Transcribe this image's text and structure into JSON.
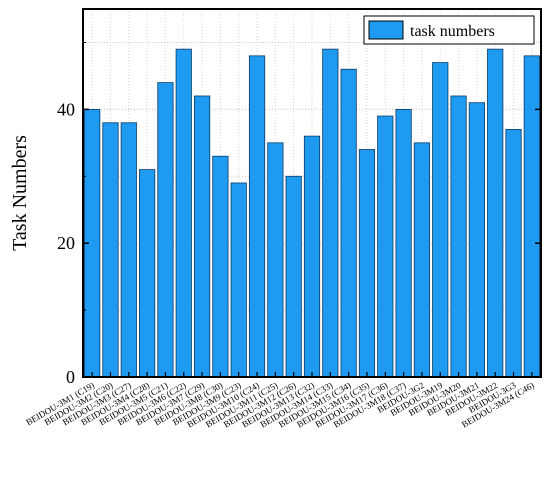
{
  "chart_data": {
    "type": "bar",
    "title": "",
    "xlabel": "",
    "ylabel": "Task  Numbers",
    "ylim": [
      0,
      55
    ],
    "yticks": [
      0,
      20,
      40
    ],
    "grid": true,
    "legend_position": "top-right",
    "bar_color": "#1E9BF0",
    "categories": [
      "BEIDOU-3M1 (C19)",
      "BEIDOU-3M2 (C20)",
      "BEIDOU-3M3 (C27)",
      "BEIDOU-3M4 (C28)",
      "BEIDOU-3M5 (C21)",
      "BEIDOU-3M6 (C22)",
      "BEIDOU-3M7 (C29)",
      "BEIDOU-3M8 (C30)",
      "BEIDOU-3M9 (C23)",
      "BEIDOU-3M10 (C24)",
      "BEIDOU-3M11 (C25)",
      "BEIDOU-3M12 (C26)",
      "BEIDOU-3M13 (C32)",
      "BEIDOU-3M14 (C33)",
      "BEIDOU-3M15 (C34)",
      "BEIDOU-3M16 (C35)",
      "BEIDOU-3M17 (C36)",
      "BEIDOU-3M18 (C37)",
      "BEIDOU-3G2",
      "BEIDOU-3M19",
      "BEIDOU-3M20",
      "BEIDOU-3M21",
      "BEIDOU-3M22",
      "BEIDOU-3G3",
      "BEIDOU-3M24 (C46)"
    ],
    "series": [
      {
        "name": "task numbers",
        "values": [
          40,
          38,
          38,
          31,
          44,
          49,
          42,
          33,
          29,
          48,
          35,
          30,
          36,
          49,
          46,
          34,
          39,
          40,
          35,
          47,
          42,
          41,
          49,
          37,
          48
        ]
      }
    ]
  }
}
